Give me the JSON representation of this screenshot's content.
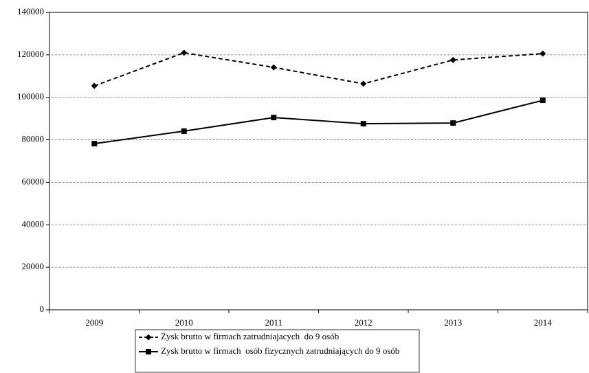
{
  "chart_data": {
    "type": "line",
    "categories": [
      "2009",
      "2010",
      "2011",
      "2012",
      "2013",
      "2014"
    ],
    "series": [
      {
        "name": "Zysk brutto w firmach zatrudniajacych  do 9 osób",
        "color": "#000000",
        "line_style": "dashed",
        "marker": "diamond",
        "values": [
          105400,
          121000,
          114100,
          106400,
          117600,
          120600
        ]
      },
      {
        "name": "Zysk brutto w firmach  osób fizycznych zatrudniających do 9 osób",
        "color": "#000000",
        "line_style": "solid",
        "marker": "square",
        "values": [
          78200,
          84100,
          90500,
          87600,
          87900,
          98600
        ]
      }
    ],
    "ylim": [
      0,
      140000
    ],
    "yticks": [
      0,
      20000,
      40000,
      60000,
      80000,
      100000,
      120000,
      140000
    ],
    "grid": true,
    "legend": "bottom"
  }
}
